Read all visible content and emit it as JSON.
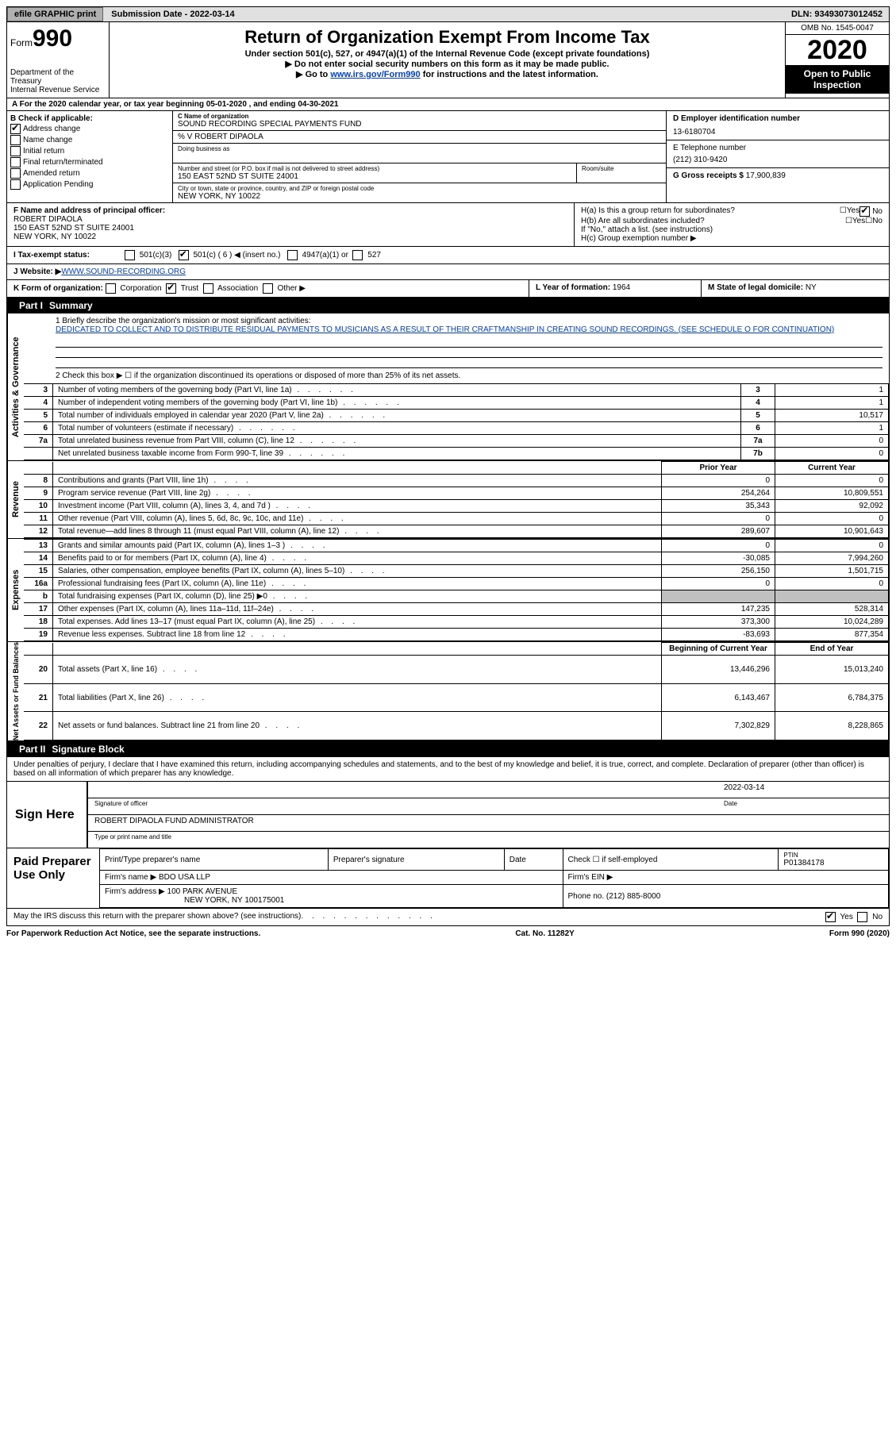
{
  "topbar": {
    "efile": "efile GRAPHIC print",
    "submission_label": "Submission Date - ",
    "submission_date": "2022-03-14",
    "dln_label": "DLN: ",
    "dln": "93493073012452"
  },
  "header": {
    "form_word": "Form",
    "form_num": "990",
    "dept": "Department of the Treasury",
    "irs": "Internal Revenue Service",
    "title": "Return of Organization Exempt From Income Tax",
    "sub1": "Under section 501(c), 527, or 4947(a)(1) of the Internal Revenue Code (except private foundations)",
    "sub2": "▶ Do not enter social security numbers on this form as it may be made public.",
    "sub3_pre": "▶ Go to ",
    "sub3_link": "www.irs.gov/Form990",
    "sub3_post": " for instructions and the latest information.",
    "omb": "OMB No. 1545-0047",
    "year": "2020",
    "open": "Open to Public Inspection"
  },
  "a_line": "A For the 2020 calendar year, or tax year beginning 05-01-2020   , and ending 04-30-2021",
  "box_b": {
    "title": "B Check if applicable:",
    "opts": [
      "Address change",
      "Name change",
      "Initial return",
      "Final return/terminated",
      "Amended return",
      "Application Pending"
    ],
    "checked_idx": 0
  },
  "box_c": {
    "name_lbl": "C Name of organization",
    "name": "SOUND RECORDING SPECIAL PAYMENTS FUND",
    "care_of": "% V ROBERT DIPAOLA",
    "dba_lbl": "Doing business as",
    "addr_lbl": "Number and street (or P.O. box if mail is not delivered to street address)",
    "addr": "150 EAST 52ND ST SUITE 24001",
    "room_lbl": "Room/suite",
    "city_lbl": "City or town, state or province, country, and ZIP or foreign postal code",
    "city": "NEW YORK, NY  10022"
  },
  "box_d": {
    "lbl": "D Employer identification number",
    "val": "13-6180704"
  },
  "box_e": {
    "lbl": "E Telephone number",
    "val": "(212) 310-9420"
  },
  "box_g": {
    "lbl": "G Gross receipts $ ",
    "val": "17,900,839"
  },
  "box_f": {
    "lbl": "F Name and address of principal officer:",
    "name": "ROBERT DIPAOLA",
    "addr": "150 EAST 52ND ST SUITE 24001",
    "city": "NEW YORK, NY  10022"
  },
  "box_h": {
    "a": "H(a)  Is this a group return for subordinates?",
    "a_no": true,
    "b": "H(b)  Are all subordinates included?",
    "b_note": "If \"No,\" attach a list. (see instructions)",
    "c": "H(c)  Group exemption number ▶"
  },
  "row_i": {
    "lbl": "I  Tax-exempt status:",
    "opts": [
      "501(c)(3)",
      "501(c) ( 6 ) ◀ (insert no.)",
      "4947(a)(1) or",
      "527"
    ],
    "checked_idx": 1
  },
  "row_j": {
    "lbl": "J  Website: ▶ ",
    "val": "WWW.SOUND-RECORDING.ORG"
  },
  "row_k": {
    "lbl": "K Form of organization:",
    "opts": [
      "Corporation",
      "Trust",
      "Association",
      "Other ▶"
    ],
    "checked_idx": 1
  },
  "row_l": {
    "lbl": "L Year of formation: ",
    "val": "1964"
  },
  "row_m": {
    "lbl": "M State of legal domicile: ",
    "val": "NY"
  },
  "part1": {
    "num": "Part I",
    "title": "Summary"
  },
  "mission": {
    "lbl": "1  Briefly describe the organization's mission or most significant activities:",
    "txt": "DEDICATED TO COLLECT AND TO DISTRIBUTE RESIDUAL PAYMENTS TO MUSICIANS AS A RESULT OF THEIR CRAFTMANSHIP IN CREATING SOUND RECORDINGS. (SEE SCHEDULE O FOR CONTINUATION)"
  },
  "line2": "2   Check this box ▶ ☐  if the organization discontinued its operations or disposed of more than 25% of its net assets.",
  "gov_lines": [
    {
      "n": "3",
      "desc": "Number of voting members of the governing body (Part VI, line 1a)",
      "box": "3",
      "val": "1"
    },
    {
      "n": "4",
      "desc": "Number of independent voting members of the governing body (Part VI, line 1b)",
      "box": "4",
      "val": "1"
    },
    {
      "n": "5",
      "desc": "Total number of individuals employed in calendar year 2020 (Part V, line 2a)",
      "box": "5",
      "val": "10,517"
    },
    {
      "n": "6",
      "desc": "Total number of volunteers (estimate if necessary)",
      "box": "6",
      "val": "1"
    },
    {
      "n": "7a",
      "desc": "Total unrelated business revenue from Part VIII, column (C), line 12",
      "box": "7a",
      "val": "0"
    },
    {
      "n": "",
      "desc": "Net unrelated business taxable income from Form 990-T, line 39",
      "box": "7b",
      "val": "0"
    }
  ],
  "col_hdrs": {
    "prior": "Prior Year",
    "current": "Current Year"
  },
  "rev_lines": [
    {
      "n": "8",
      "desc": "Contributions and grants (Part VIII, line 1h)",
      "p": "0",
      "c": "0"
    },
    {
      "n": "9",
      "desc": "Program service revenue (Part VIII, line 2g)",
      "p": "254,264",
      "c": "10,809,551"
    },
    {
      "n": "10",
      "desc": "Investment income (Part VIII, column (A), lines 3, 4, and 7d )",
      "p": "35,343",
      "c": "92,092"
    },
    {
      "n": "11",
      "desc": "Other revenue (Part VIII, column (A), lines 5, 6d, 8c, 9c, 10c, and 11e)",
      "p": "0",
      "c": "0"
    },
    {
      "n": "12",
      "desc": "Total revenue—add lines 8 through 11 (must equal Part VIII, column (A), line 12)",
      "p": "289,607",
      "c": "10,901,643"
    }
  ],
  "exp_lines": [
    {
      "n": "13",
      "desc": "Grants and similar amounts paid (Part IX, column (A), lines 1–3 )",
      "p": "0",
      "c": "0"
    },
    {
      "n": "14",
      "desc": "Benefits paid to or for members (Part IX, column (A), line 4)",
      "p": "-30,085",
      "c": "7,994,260"
    },
    {
      "n": "15",
      "desc": "Salaries, other compensation, employee benefits (Part IX, column (A), lines 5–10)",
      "p": "256,150",
      "c": "1,501,715"
    },
    {
      "n": "16a",
      "desc": "Professional fundraising fees (Part IX, column (A), line 11e)",
      "p": "0",
      "c": "0"
    },
    {
      "n": "b",
      "desc": "Total fundraising expenses (Part IX, column (D), line 25) ▶0",
      "p": "",
      "c": "",
      "shade": true
    },
    {
      "n": "17",
      "desc": "Other expenses (Part IX, column (A), lines 11a–11d, 11f–24e)",
      "p": "147,235",
      "c": "528,314"
    },
    {
      "n": "18",
      "desc": "Total expenses. Add lines 13–17 (must equal Part IX, column (A), line 25)",
      "p": "373,300",
      "c": "10,024,289"
    },
    {
      "n": "19",
      "desc": "Revenue less expenses. Subtract line 18 from line 12",
      "p": "-83,693",
      "c": "877,354"
    }
  ],
  "na_hdrs": {
    "begin": "Beginning of Current Year",
    "end": "End of Year"
  },
  "na_lines": [
    {
      "n": "20",
      "desc": "Total assets (Part X, line 16)",
      "p": "13,446,296",
      "c": "15,013,240"
    },
    {
      "n": "21",
      "desc": "Total liabilities (Part X, line 26)",
      "p": "6,143,467",
      "c": "6,784,375"
    },
    {
      "n": "22",
      "desc": "Net assets or fund balances. Subtract line 21 from line 20",
      "p": "7,302,829",
      "c": "8,228,865"
    }
  ],
  "side": {
    "gov": "Activities & Governance",
    "rev": "Revenue",
    "exp": "Expenses",
    "na": "Net Assets or Fund Balances"
  },
  "part2": {
    "num": "Part II",
    "title": "Signature Block"
  },
  "sig_decl": "Under penalties of perjury, I declare that I have examined this return, including accompanying schedules and statements, and to the best of my knowledge and belief, it is true, correct, and complete. Declaration of preparer (other than officer) is based on all information of which preparer has any knowledge.",
  "sign": {
    "here": "Sign Here",
    "sig_lbl": "Signature of officer",
    "date_lbl": "Date",
    "date": "2022-03-14",
    "name": "ROBERT DIPAOLA  FUND ADMINISTRATOR",
    "name_lbl": "Type or print name and title"
  },
  "prep": {
    "lbl": "Paid Preparer Use Only",
    "h1": "Print/Type preparer's name",
    "h2": "Preparer's signature",
    "h3": "Date",
    "h4": "Check ☐ if self-employed",
    "h5": "PTIN",
    "ptin": "P01384178",
    "firm_lbl": "Firm's name   ▶",
    "firm": "BDO USA LLP",
    "ein_lbl": "Firm's EIN ▶",
    "addr_lbl": "Firm's address ▶",
    "addr": "100 PARK AVENUE",
    "addr2": "NEW YORK, NY  100175001",
    "phone_lbl": "Phone no. ",
    "phone": "(212) 885-8000"
  },
  "discuss": {
    "q": "May the IRS discuss this return with the preparer shown above? (see instructions)",
    "yes": true
  },
  "footer": {
    "l": "For Paperwork Reduction Act Notice, see the separate instructions.",
    "m": "Cat. No. 11282Y",
    "r": "Form 990 (2020)"
  }
}
